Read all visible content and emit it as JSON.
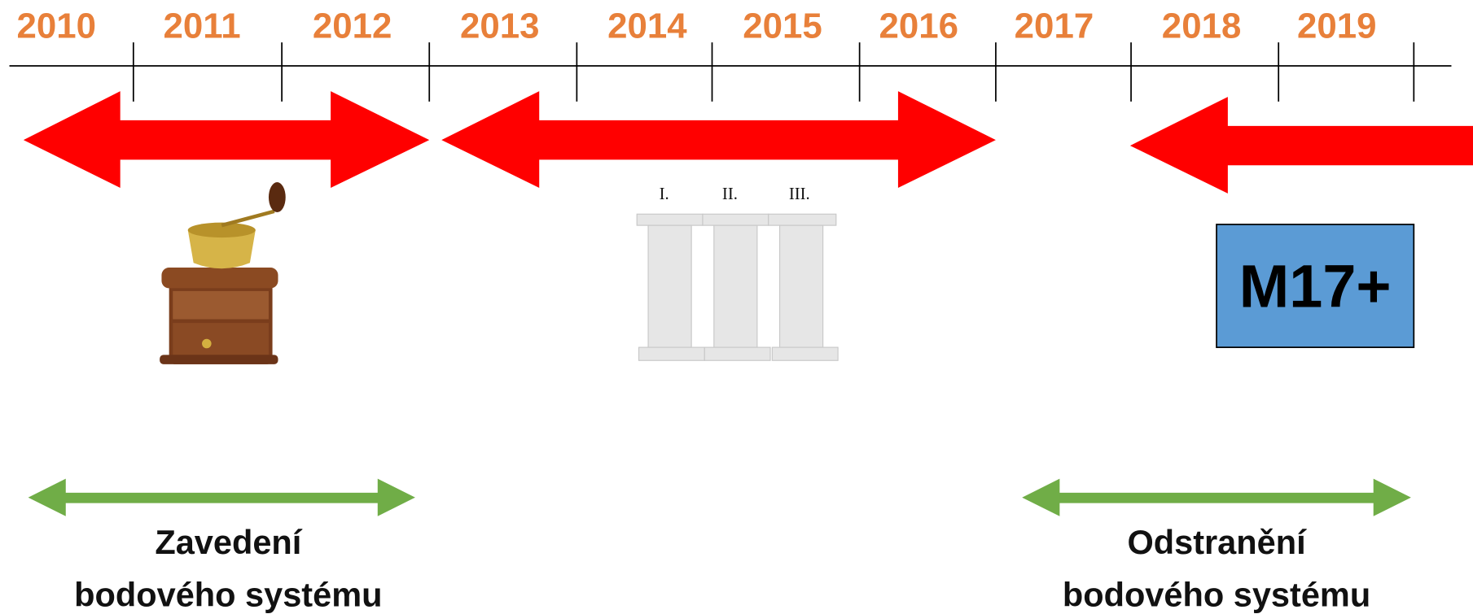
{
  "timeline": {
    "years": [
      "2010",
      "2011",
      "2012",
      "2013",
      "2014",
      "2015",
      "2016",
      "2017",
      "2018",
      "2019"
    ]
  },
  "pillars": {
    "labels": [
      "I.",
      "II.",
      "III."
    ]
  },
  "box": {
    "label": "M17+"
  },
  "captions": [
    {
      "lines": [
        "Zavedení",
        "bodového systému"
      ]
    },
    {
      "lines": [
        "Odstranění",
        "bodového systému"
      ]
    }
  ]
}
